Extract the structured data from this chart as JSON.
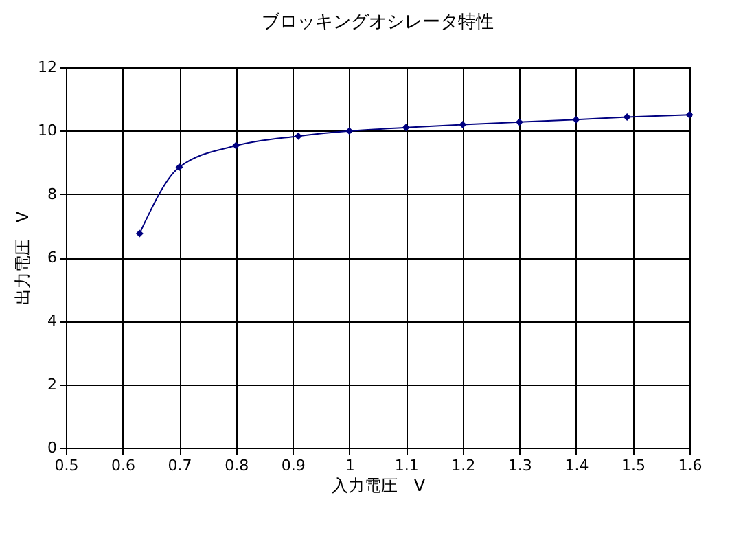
{
  "chart_data": {
    "type": "line",
    "title": "ブロッキングオシレータ特性",
    "xlabel": "入力電圧　V",
    "ylabel": "出力電圧　V",
    "x": [
      0.63,
      0.7,
      0.8,
      0.91,
      1.0,
      1.1,
      1.2,
      1.3,
      1.4,
      1.49,
      1.6
    ],
    "series": [
      {
        "color": "#000080",
        "values": [
          6.76,
          8.85,
          9.53,
          9.83,
          9.99,
          10.1,
          10.19,
          10.27,
          10.35,
          10.43,
          10.5
        ]
      }
    ],
    "xlim": [
      0.5,
      1.6
    ],
    "xticks": [
      0.5,
      0.6,
      0.7,
      0.8,
      0.9,
      1,
      1.1,
      1.2,
      1.3,
      1.4,
      1.5,
      1.6
    ],
    "ylim": [
      0,
      12
    ],
    "yticks": [
      0,
      2,
      4,
      6,
      8,
      10,
      12
    ],
    "grid": true,
    "marker": "diamond",
    "line_style": "solid"
  }
}
